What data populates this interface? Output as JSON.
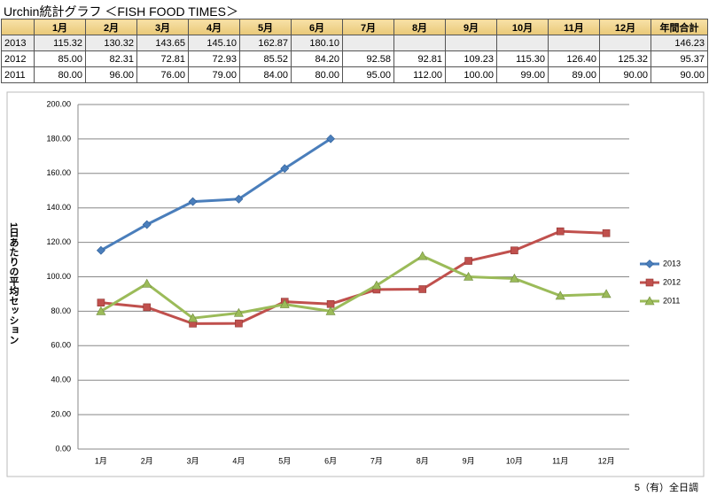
{
  "title": "Urchin統計グラフ ＜FISH FOOD TIMES＞",
  "table": {
    "header": [
      "1月",
      "2月",
      "3月",
      "4月",
      "5月",
      "6月",
      "7月",
      "8月",
      "9月",
      "10月",
      "11月",
      "12月",
      "年間合計"
    ],
    "rows": [
      [
        "2013",
        "115.32",
        "130.32",
        "143.65",
        "145.10",
        "162.87",
        "180.10",
        null,
        null,
        null,
        null,
        null,
        null,
        "146.23"
      ],
      [
        "2012",
        "85.00",
        "82.31",
        "72.81",
        "72.93",
        "85.52",
        "84.20",
        "92.58",
        "92.81",
        "109.23",
        "115.30",
        "126.40",
        "125.32",
        "95.37"
      ],
      [
        "2011",
        "80.00",
        "96.00",
        "76.00",
        "79.00",
        "84.00",
        "80.00",
        "95.00",
        "112.00",
        "100.00",
        "99.00",
        "89.00",
        "90.00",
        "90.00"
      ]
    ]
  },
  "chart_data": {
    "type": "line",
    "ylabel": "1日あたりの平均セッション",
    "categories": [
      "1月",
      "2月",
      "3月",
      "4月",
      "5月",
      "6月",
      "7月",
      "8月",
      "9月",
      "10月",
      "11月",
      "12月"
    ],
    "series": [
      {
        "name": "2013",
        "color": "#4a7ebb",
        "marker": "diamond",
        "values": [
          115.32,
          130.32,
          143.65,
          145.1,
          162.87,
          180.1,
          null,
          null,
          null,
          null,
          null,
          null
        ]
      },
      {
        "name": "2012",
        "color": "#c0504d",
        "marker": "square",
        "values": [
          85.0,
          82.31,
          72.81,
          72.93,
          85.52,
          84.2,
          92.58,
          92.81,
          109.23,
          115.3,
          126.4,
          125.32
        ]
      },
      {
        "name": "2011",
        "color": "#9bbb59",
        "marker": "triangle",
        "values": [
          80.0,
          96.0,
          76.0,
          79.0,
          84.0,
          80.0,
          95.0,
          112.0,
          100.0,
          99.0,
          89.0,
          90.0
        ]
      }
    ],
    "ylim": [
      0,
      200
    ],
    "yticks": [
      {
        "value": 0,
        "label": "0.00"
      },
      {
        "value": 20,
        "label": "20.00"
      },
      {
        "value": 40,
        "label": "40.00"
      },
      {
        "value": 60,
        "label": "60.00"
      },
      {
        "value": 80,
        "label": "80.00"
      },
      {
        "value": 100,
        "label": "100.00"
      },
      {
        "value": 120,
        "label": "120.00"
      },
      {
        "value": 140,
        "label": "140.00"
      },
      {
        "value": 160,
        "label": "160.00"
      },
      {
        "value": 180,
        "label": "180.00"
      },
      {
        "value": 200,
        "label": "200.00"
      }
    ],
    "grid": true,
    "legend": "right"
  },
  "footer": "5（有）全日調"
}
